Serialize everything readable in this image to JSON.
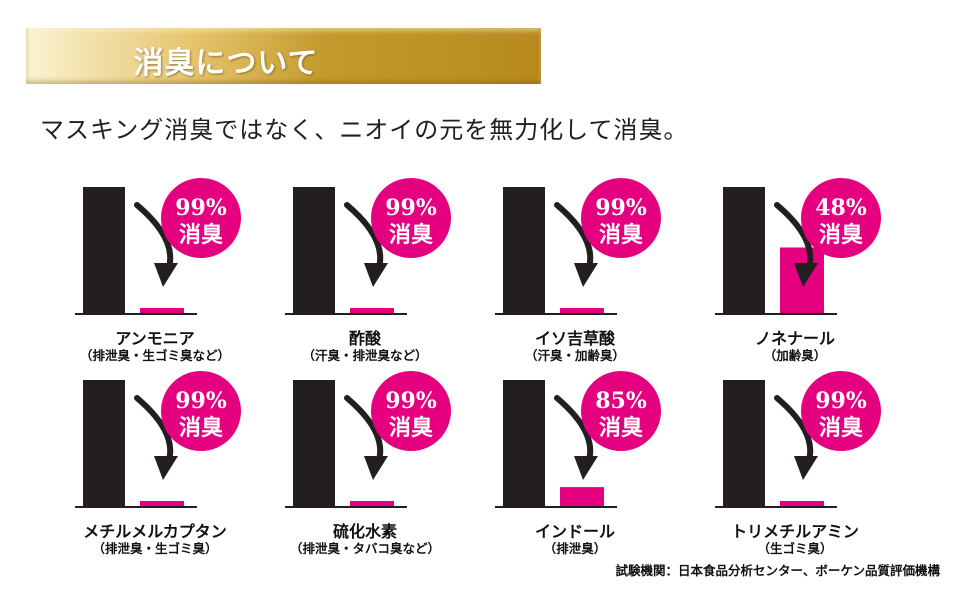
{
  "header": {
    "title": "消臭について"
  },
  "subtitle": "マスキング消臭ではなく、ニオイの元を無力化して消臭。",
  "colors": {
    "before_bar": "#231f20",
    "after_bar": "#e4007f",
    "badge": "#e4007f",
    "badge_text": "#ffffff",
    "arrow": "#231f20",
    "baseline": "#231f20"
  },
  "badge_suffix": "消臭",
  "chart_data": [
    {
      "type": "bar",
      "title": "アンモニア",
      "subtitle": "（排泄臭・生ゴミ臭など）",
      "categories": [
        "",
        ""
      ],
      "values": [
        100,
        1
      ],
      "ylim": [
        0,
        100
      ],
      "badge": "99%",
      "grid": false
    },
    {
      "type": "bar",
      "title": "酢酸",
      "subtitle": "（汗臭・排泄臭など）",
      "categories": [
        "",
        ""
      ],
      "values": [
        100,
        1
      ],
      "ylim": [
        0,
        100
      ],
      "badge": "99%",
      "grid": false
    },
    {
      "type": "bar",
      "title": "イソ吉草酸",
      "subtitle": "（汗臭・加齢臭）",
      "categories": [
        "",
        ""
      ],
      "values": [
        100,
        1
      ],
      "ylim": [
        0,
        100
      ],
      "badge": "99%",
      "grid": false
    },
    {
      "type": "bar",
      "title": "ノネナール",
      "subtitle": "（加齢臭）",
      "categories": [
        "",
        ""
      ],
      "values": [
        100,
        52
      ],
      "ylim": [
        0,
        100
      ],
      "badge": "48%",
      "grid": false
    },
    {
      "type": "bar",
      "title": "メチルメルカプタン",
      "subtitle": "（排泄臭・生ゴミ臭）",
      "categories": [
        "",
        ""
      ],
      "values": [
        100,
        1
      ],
      "ylim": [
        0,
        100
      ],
      "badge": "99%",
      "grid": false
    },
    {
      "type": "bar",
      "title": "硫化水素",
      "subtitle": "（排泄臭・タバコ臭など）",
      "categories": [
        "",
        ""
      ],
      "values": [
        100,
        1
      ],
      "ylim": [
        0,
        100
      ],
      "badge": "99%",
      "grid": false
    },
    {
      "type": "bar",
      "title": "インドール",
      "subtitle": "（排泄臭）",
      "categories": [
        "",
        ""
      ],
      "values": [
        100,
        15
      ],
      "ylim": [
        0,
        100
      ],
      "badge": "85%",
      "grid": false
    },
    {
      "type": "bar",
      "title": "トリメチルアミン",
      "subtitle": "（生ゴミ臭）",
      "categories": [
        "",
        ""
      ],
      "values": [
        100,
        1
      ],
      "ylim": [
        0,
        100
      ],
      "badge": "99%",
      "grid": false
    }
  ],
  "source": "試験機関：日本食品分析センター、ボーケン品質評価機構"
}
